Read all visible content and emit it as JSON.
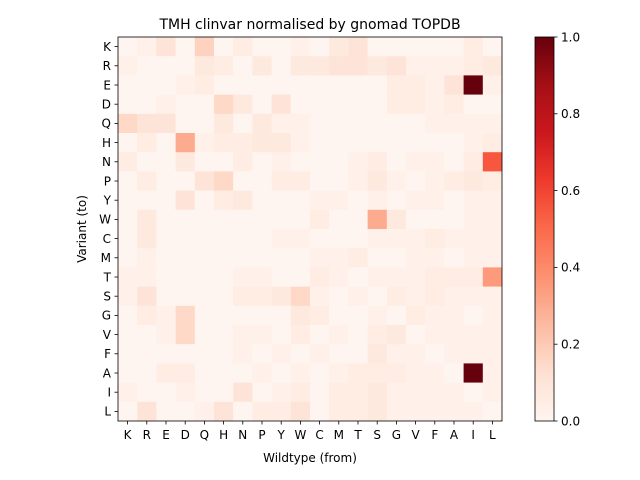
{
  "chart_data": {
    "type": "heatmap",
    "title": "TMH clinvar normalised by gnomad TOPDB",
    "xlabel": "Wildtype (from)",
    "ylabel": "Variant (to)",
    "x_categories": [
      "K",
      "R",
      "E",
      "D",
      "Q",
      "H",
      "N",
      "P",
      "Y",
      "W",
      "C",
      "M",
      "T",
      "S",
      "G",
      "V",
      "F",
      "A",
      "I",
      "L"
    ],
    "y_categories": [
      "K",
      "R",
      "E",
      "D",
      "Q",
      "H",
      "N",
      "P",
      "Y",
      "W",
      "C",
      "M",
      "T",
      "S",
      "G",
      "V",
      "F",
      "A",
      "I",
      "L"
    ],
    "colorbar": {
      "colormap": "Reds",
      "range": [
        0,
        1.0
      ],
      "ticks": [
        0.0,
        0.2,
        0.4,
        0.6,
        0.8,
        1.0
      ],
      "tick_labels": [
        "0.0",
        "0.2",
        "0.4",
        "0.6",
        "0.8",
        "1.0"
      ]
    },
    "values": [
      [
        0,
        0.03,
        0.1,
        0,
        0.17,
        0,
        0.05,
        0,
        0,
        0.03,
        0,
        0.07,
        0.1,
        0,
        0,
        0,
        0,
        0,
        0.05,
        0
      ],
      [
        0.03,
        0,
        0,
        0,
        0.07,
        0.05,
        0,
        0.07,
        0,
        0.07,
        0.07,
        0.1,
        0.1,
        0.07,
        0.1,
        0.03,
        0.03,
        0.03,
        0.05,
        0.07
      ],
      [
        0,
        0,
        0,
        0.03,
        0.05,
        0,
        0,
        0,
        0,
        0,
        0,
        0,
        0,
        0,
        0.05,
        0.05,
        0.03,
        0.1,
        1.0,
        0.03
      ],
      [
        0,
        0,
        0.03,
        0,
        0,
        0.15,
        0.07,
        0,
        0.1,
        0,
        0,
        0,
        0,
        0,
        0.05,
        0.05,
        0.03,
        0.05,
        0,
        0
      ],
      [
        0.15,
        0.1,
        0.1,
        0,
        0,
        0.07,
        0,
        0.07,
        0.03,
        0.03,
        0,
        0,
        0,
        0,
        0,
        0,
        0.03,
        0.03,
        0.03,
        0.03
      ],
      [
        0,
        0.05,
        0,
        0.3,
        0.03,
        0.05,
        0.05,
        0.07,
        0.07,
        0.03,
        0,
        0,
        0,
        0,
        0,
        0,
        0,
        0,
        0.03,
        0.05
      ],
      [
        0.05,
        0,
        0,
        0.07,
        0,
        0,
        0.05,
        0,
        0.03,
        0,
        0,
        0,
        0.03,
        0.05,
        0,
        0.03,
        0.03,
        0,
        0.05,
        0.55
      ],
      [
        0,
        0.05,
        0,
        0,
        0.1,
        0.15,
        0,
        0,
        0.05,
        0.05,
        0,
        0,
        0.03,
        0.07,
        0.03,
        0,
        0.03,
        0.05,
        0.07,
        0.05
      ],
      [
        0,
        0,
        0,
        0.1,
        0,
        0.05,
        0.07,
        0,
        0,
        0,
        0.03,
        0.03,
        0,
        0.03,
        0,
        0.03,
        0.03,
        0,
        0.03,
        0.03
      ],
      [
        0,
        0.07,
        0,
        0,
        0,
        0,
        0,
        0,
        0,
        0,
        0.05,
        0,
        0,
        0.3,
        0.07,
        0,
        0,
        0,
        0.03,
        0.03
      ],
      [
        0,
        0.07,
        0,
        0,
        0,
        0,
        0,
        0,
        0.03,
        0.03,
        0,
        0,
        0,
        0.03,
        0.03,
        0.03,
        0.05,
        0.03,
        0.03,
        0.03
      ],
      [
        0,
        0.03,
        0,
        0,
        0,
        0,
        0,
        0,
        0,
        0,
        0.03,
        0.03,
        0.05,
        0,
        0,
        0.03,
        0.03,
        0,
        0.03,
        0.03
      ],
      [
        0.03,
        0.03,
        0,
        0,
        0,
        0,
        0.03,
        0.03,
        0,
        0,
        0.05,
        0.03,
        0,
        0.03,
        0.03,
        0.03,
        0.05,
        0.05,
        0.05,
        0.35
      ],
      [
        0.03,
        0.1,
        0,
        0,
        0,
        0,
        0.05,
        0.05,
        0.07,
        0.15,
        0.03,
        0,
        0.03,
        0,
        0.05,
        0.03,
        0.05,
        0.03,
        0.03,
        0.03
      ],
      [
        0,
        0.05,
        0.03,
        0.15,
        0,
        0,
        0,
        0,
        0,
        0.07,
        0.05,
        0,
        0,
        0.03,
        0,
        0.05,
        0.03,
        0.03,
        0,
        0.03
      ],
      [
        0,
        0,
        0.03,
        0.15,
        0,
        0,
        0.03,
        0.03,
        0,
        0.05,
        0,
        0.03,
        0,
        0.05,
        0.07,
        0,
        0.03,
        0.03,
        0.03,
        0.03
      ],
      [
        0,
        0,
        0,
        0,
        0,
        0,
        0.03,
        0,
        0.03,
        0,
        0.03,
        0,
        0,
        0.07,
        0.03,
        0.03,
        0,
        0.03,
        0.03,
        0.03
      ],
      [
        0,
        0,
        0.05,
        0.05,
        0,
        0,
        0,
        0.03,
        0,
        0.03,
        0,
        0.03,
        0.05,
        0.05,
        0.05,
        0.03,
        0.03,
        0,
        1.0,
        0.03
      ],
      [
        0.03,
        0,
        0,
        0.03,
        0,
        0,
        0.1,
        0,
        0.03,
        0.05,
        0,
        0.05,
        0.05,
        0.07,
        0.03,
        0.03,
        0.03,
        0.03,
        0,
        0.03
      ],
      [
        0,
        0.1,
        0,
        0,
        0.03,
        0.1,
        0,
        0.05,
        0.05,
        0.1,
        0,
        0.05,
        0.05,
        0.07,
        0.03,
        0.03,
        0.03,
        0.03,
        0.03,
        0
      ]
    ]
  }
}
